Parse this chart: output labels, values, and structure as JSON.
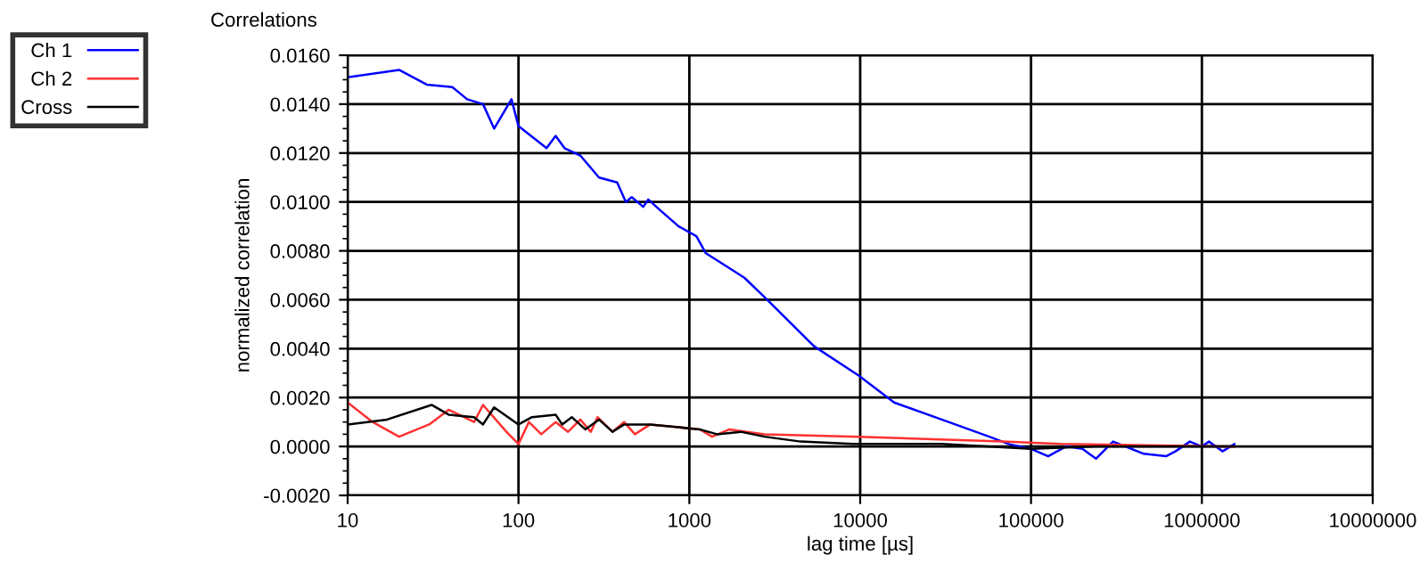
{
  "chart_data": {
    "type": "line",
    "title": "Correlations",
    "xlabel": "lag time [µs]",
    "ylabel": "normalized correlation",
    "log": "x",
    "grid": true,
    "legend": "left",
    "xlim": [
      10,
      10000000
    ],
    "xticks": [
      10,
      100,
      1000,
      10000,
      100000,
      1000000,
      10000000
    ],
    "ylim": [
      -0.002,
      0.016
    ],
    "yticks": [
      {
        "value": -0.002,
        "label": "-0.0020"
      },
      {
        "value": 0,
        "label": "0.0000"
      },
      {
        "value": 0.002,
        "label": "0.0020"
      },
      {
        "value": 0.004,
        "label": "0.0040"
      },
      {
        "value": 0.006,
        "label": "0.0060"
      },
      {
        "value": 0.008,
        "label": "0.0080"
      },
      {
        "value": 0.01,
        "label": "0.0100"
      },
      {
        "value": 0.012,
        "label": "0.0120"
      },
      {
        "value": 0.014,
        "label": "0.0140"
      },
      {
        "value": 0.016,
        "label": "0.0160"
      }
    ],
    "series": [
      {
        "name": "Ch 1",
        "color": "#0000ff",
        "x": [
          10,
          20,
          29,
          41,
          50,
          62,
          72,
          91,
          100,
          146,
          165,
          186,
          230,
          296,
          378,
          425,
          460,
          537,
          575,
          665,
          867,
          1100,
          1250,
          1540,
          2100,
          2760,
          5370,
          9800,
          15800,
          30000,
          57000,
          74000,
          100000,
          126000,
          160000,
          200000,
          240000,
          302000,
          457000,
          617000,
          700000,
          850000,
          1000000,
          1100000,
          1320000,
          1550000
        ],
        "values": [
          0.0151,
          0.0154,
          0.0148,
          0.0147,
          0.0142,
          0.014,
          0.013,
          0.0142,
          0.0131,
          0.0122,
          0.0127,
          0.0122,
          0.0119,
          0.011,
          0.0108,
          0.01,
          0.0102,
          0.0098,
          0.0101,
          0.0097,
          0.009,
          0.0086,
          0.0079,
          0.0075,
          0.0069,
          0.0061,
          0.0041,
          0.0029,
          0.0018,
          0.0011,
          0.0004,
          0.0001,
          -0.0001,
          -0.0004,
          0.0,
          -0.0001,
          -0.0005,
          0.0002,
          -0.0003,
          -0.0004,
          -0.0002,
          0.0002,
          0.0,
          0.0002,
          -0.0002,
          0.0001
        ]
      },
      {
        "name": "Ch 2",
        "color": "#ff3030",
        "x": [
          10,
          14,
          20,
          30,
          39,
          55,
          62,
          85,
          100,
          115,
          136,
          165,
          195,
          230,
          265,
          290,
          355,
          415,
          480,
          590,
          1150,
          1360,
          1720,
          2760,
          9800,
          68000,
          150000,
          1550000
        ],
        "values": [
          0.0018,
          0.001,
          0.0004,
          0.0009,
          0.0015,
          0.001,
          0.0017,
          0.0006,
          0.0001,
          0.001,
          0.0005,
          0.001,
          0.0006,
          0.0011,
          0.0006,
          0.0012,
          0.0006,
          0.001,
          0.0005,
          0.0009,
          0.0007,
          0.0004,
          0.0007,
          0.0005,
          0.0004,
          0.0002,
          0.0001,
          0.0
        ]
      },
      {
        "name": "Cross",
        "color": "#000000",
        "x": [
          10,
          17,
          31,
          39,
          55,
          62,
          72,
          100,
          120,
          165,
          180,
          205,
          246,
          296,
          355,
          415,
          590,
          1150,
          1450,
          2000,
          2760,
          4480,
          9100,
          30000,
          100000,
          240000,
          500000,
          1000000,
          1550000
        ],
        "values": [
          0.0009,
          0.0011,
          0.0017,
          0.0013,
          0.0012,
          0.0009,
          0.0016,
          0.0009,
          0.0012,
          0.0013,
          0.0009,
          0.0012,
          0.0007,
          0.0011,
          0.0006,
          0.0009,
          0.0009,
          0.0007,
          0.0005,
          0.0006,
          0.0004,
          0.0002,
          0.0001,
          0.0001,
          -0.0001,
          0.0,
          0.0,
          0.0,
          0.0
        ]
      }
    ]
  }
}
